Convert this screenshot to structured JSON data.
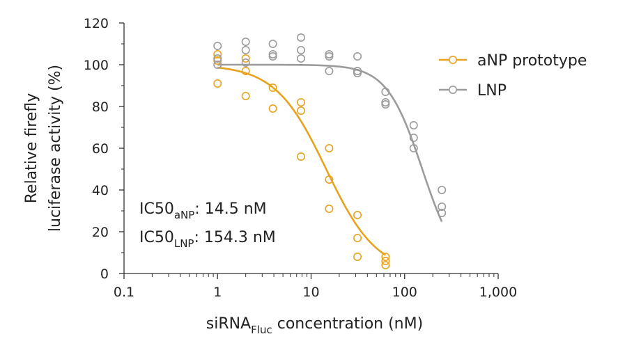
{
  "chart_data": {
    "type": "scatter",
    "x_scale": "log",
    "xlim": [
      0.1,
      1000
    ],
    "ylim": [
      0,
      120
    ],
    "x_ticks": [
      {
        "value": 0.1,
        "label": "0.1"
      },
      {
        "value": 1,
        "label": "1"
      },
      {
        "value": 10,
        "label": "10"
      },
      {
        "value": 100,
        "label": "100"
      },
      {
        "value": 1000,
        "label": "1,000"
      }
    ],
    "y_ticks": [
      {
        "value": 0,
        "label": "0"
      },
      {
        "value": 20,
        "label": "20"
      },
      {
        "value": 40,
        "label": "40"
      },
      {
        "value": 60,
        "label": "60"
      },
      {
        "value": 80,
        "label": "80"
      },
      {
        "value": 100,
        "label": "100"
      },
      {
        "value": 120,
        "label": "120"
      }
    ],
    "xlabel": {
      "main": "siRNA",
      "sub": "Fluc",
      "rest": " concentration (nM)"
    },
    "ylabel": [
      "Relative firefly",
      "luciferase activity (%)"
    ],
    "legend_position": "top-right",
    "grid": false,
    "series": [
      {
        "name": "aNP prototype",
        "color": "#E8A21E",
        "ic50": 14.5,
        "fit_top": 100,
        "fit_bottom": 0,
        "fit_hill": 1.6,
        "fit_x_range": [
          1,
          62.5
        ],
        "points": [
          [
            1,
            105
          ],
          [
            1,
            102
          ],
          [
            1,
            91
          ],
          [
            2,
            103
          ],
          [
            2,
            97
          ],
          [
            2,
            85
          ],
          [
            3.9,
            89
          ],
          [
            3.9,
            79
          ],
          [
            7.8,
            82
          ],
          [
            7.8,
            78
          ],
          [
            7.8,
            56
          ],
          [
            15.6,
            60
          ],
          [
            15.6,
            45
          ],
          [
            15.6,
            31
          ],
          [
            31.3,
            28
          ],
          [
            31.3,
            17
          ],
          [
            31.3,
            8
          ],
          [
            62.5,
            8
          ],
          [
            62.5,
            6
          ],
          [
            62.5,
            4
          ]
        ]
      },
      {
        "name": "LNP",
        "color": "#9B9B9B",
        "ic50": 154.3,
        "fit_top": 100,
        "fit_bottom": 0,
        "fit_hill": 2.3,
        "fit_x_range": [
          1,
          250
        ],
        "points": [
          [
            1,
            109
          ],
          [
            1,
            103
          ],
          [
            1,
            100
          ],
          [
            2,
            111
          ],
          [
            2,
            107
          ],
          [
            2,
            101
          ],
          [
            3.9,
            110
          ],
          [
            3.9,
            105
          ],
          [
            3.9,
            104
          ],
          [
            7.8,
            113
          ],
          [
            7.8,
            107
          ],
          [
            7.8,
            103
          ],
          [
            15.6,
            105
          ],
          [
            15.6,
            104
          ],
          [
            15.6,
            97
          ],
          [
            31.3,
            104
          ],
          [
            31.3,
            97
          ],
          [
            31.3,
            96
          ],
          [
            62.5,
            87
          ],
          [
            62.5,
            82
          ],
          [
            62.5,
            81
          ],
          [
            125,
            71
          ],
          [
            125,
            65
          ],
          [
            125,
            60
          ],
          [
            250,
            40
          ],
          [
            250,
            32
          ],
          [
            250,
            29
          ]
        ]
      }
    ],
    "annotations": [
      {
        "prefix": "IC50",
        "sub": "aNP",
        "suffix": ": 14.5 nM"
      },
      {
        "prefix": "IC50",
        "sub": "LNP",
        "suffix": ": 154.3 nM"
      }
    ]
  }
}
